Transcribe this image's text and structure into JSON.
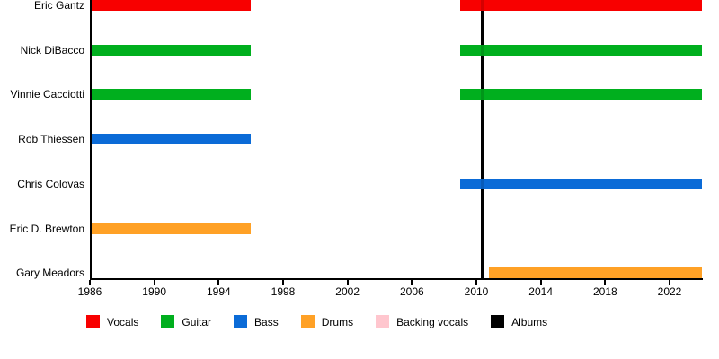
{
  "chart_data": {
    "type": "bar",
    "variant": "horizontal-gantt-member-timeline",
    "title": "",
    "xlabel": "",
    "ylabel": "",
    "grid": false,
    "x_axis": {
      "min": 1986,
      "max": 2024,
      "tick_labels": [
        "1986",
        "1990",
        "1994",
        "1998",
        "2002",
        "2006",
        "2010",
        "2014",
        "2018",
        "2022"
      ],
      "tick_years": [
        1986,
        1990,
        1994,
        1998,
        2002,
        2006,
        2010,
        2014,
        2018,
        2022
      ]
    },
    "members": [
      {
        "name": "Eric Gantz",
        "role": "Vocals",
        "segments": [
          [
            1986,
            1996
          ],
          [
            2009,
            2024
          ]
        ]
      },
      {
        "name": "Nick DiBacco",
        "role": "Guitar",
        "segments": [
          [
            1986,
            1996
          ],
          [
            2009,
            2024
          ]
        ]
      },
      {
        "name": "Vinnie Cacciotti",
        "role": "Guitar",
        "segments": [
          [
            1986,
            1996
          ],
          [
            2009,
            2024
          ]
        ]
      },
      {
        "name": "Rob Thiessen",
        "role": "Bass",
        "segments": [
          [
            1986,
            1996
          ]
        ]
      },
      {
        "name": "Chris Colovas",
        "role": "Bass",
        "segments": [
          [
            2009,
            2024
          ]
        ]
      },
      {
        "name": "Eric D. Brewton",
        "role": "Drums",
        "segments": [
          [
            1986,
            1996
          ]
        ]
      },
      {
        "name": "Gary Meadors",
        "role": "Drums",
        "segments": [
          [
            2010.8,
            2024
          ]
        ]
      }
    ],
    "album_marker_years": [
      2010.35
    ],
    "legend": [
      {
        "label": "Vocals",
        "color": "#f80000"
      },
      {
        "label": "Guitar",
        "color": "#00af1e"
      },
      {
        "label": "Bass",
        "color": "#0b6bd7"
      },
      {
        "label": "Drums",
        "color": "#ffa126"
      },
      {
        "label": "Backing vocals",
        "color": "#ffc6ce"
      },
      {
        "label": "Albums",
        "color": "#000000"
      }
    ],
    "legend_position": "bottom",
    "axis_color": "#000000"
  }
}
